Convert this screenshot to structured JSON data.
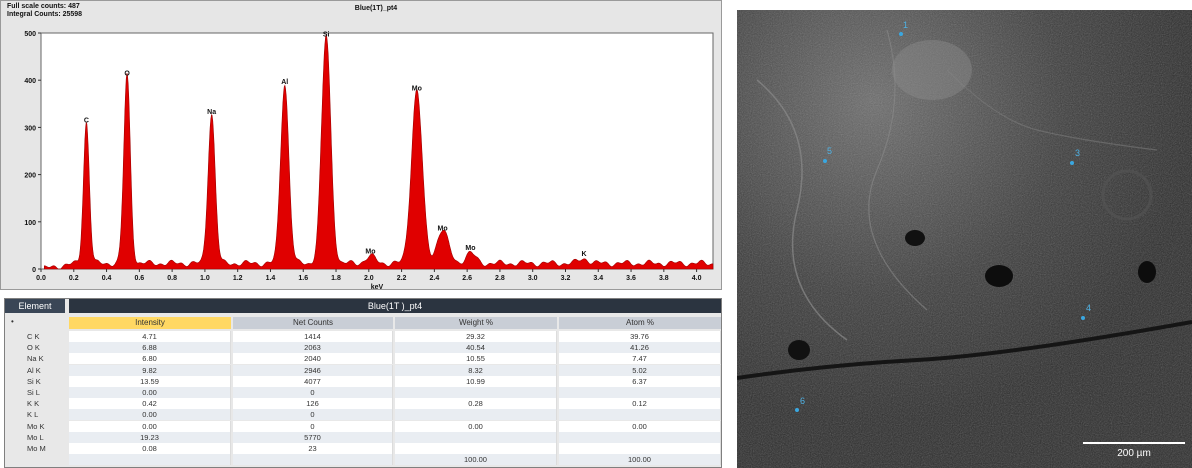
{
  "header": {
    "full_scale": "Full scale counts: 487",
    "integral": "Integral Counts: 25598",
    "title": "Blue(1T)_pt4"
  },
  "chart_data": {
    "type": "area",
    "title": "Blue(1T)_pt4",
    "xlabel": "keV",
    "ylabel": "",
    "xlim": [
      0.0,
      4.1
    ],
    "ylim": [
      0,
      500
    ],
    "xticks": [
      "0.0",
      "0.2",
      "0.4",
      "0.6",
      "0.8",
      "1.0",
      "1.2",
      "1.4",
      "1.6",
      "1.8",
      "2.0",
      "2.2",
      "2.4",
      "2.6",
      "2.8",
      "3.0",
      "3.2",
      "3.4",
      "3.6",
      "3.8",
      "4.0"
    ],
    "yticks": [
      "0",
      "100",
      "200",
      "300",
      "400",
      "500"
    ],
    "color": "#e00000",
    "baseline": 12,
    "peaks": [
      {
        "label": "C",
        "x": 0.277,
        "y": 300,
        "w": 0.018
      },
      {
        "label": "O",
        "x": 0.525,
        "y": 400,
        "w": 0.02
      },
      {
        "label": "Na",
        "x": 1.041,
        "y": 318,
        "w": 0.022
      },
      {
        "label": "Al",
        "x": 1.487,
        "y": 382,
        "w": 0.025
      },
      {
        "label": "Si",
        "x": 1.74,
        "y": 483,
        "w": 0.028
      },
      {
        "label": "Mo",
        "x": 2.01,
        "y": 15,
        "w": 0.03
      },
      {
        "label": "Mo",
        "x": 2.293,
        "y": 368,
        "w": 0.033
      },
      {
        "label": "Mo",
        "x": 2.45,
        "y": 72,
        "w": 0.035
      },
      {
        "label": "Mo",
        "x": 2.62,
        "y": 22,
        "w": 0.03
      },
      {
        "label": "K",
        "x": 3.313,
        "y": 10,
        "w": 0.03
      }
    ]
  },
  "table": {
    "group_title": "Blue(1T )_pt4",
    "element_header": "Element",
    "columns": [
      "Intensity",
      "Net Counts",
      "Weight %",
      "Atom %"
    ],
    "rows": [
      {
        "el": "C K",
        "v": [
          "4.71",
          "1414",
          "29.32",
          "39.76"
        ]
      },
      {
        "el": "O K",
        "v": [
          "6.88",
          "2063",
          "40.54",
          "41.26"
        ]
      },
      {
        "el": "Na K",
        "v": [
          "6.80",
          "2040",
          "10.55",
          "7.47"
        ]
      },
      {
        "el": "Al K",
        "v": [
          "9.82",
          "2946",
          "8.32",
          "5.02"
        ]
      },
      {
        "el": "Si K",
        "v": [
          "13.59",
          "4077",
          "10.99",
          "6.37"
        ]
      },
      {
        "el": "Si L",
        "v": [
          "0.00",
          "0",
          "",
          ""
        ]
      },
      {
        "el": "K K",
        "v": [
          "0.42",
          "126",
          "0.28",
          "0.12"
        ]
      },
      {
        "el": "K L",
        "v": [
          "0.00",
          "0",
          "",
          ""
        ]
      },
      {
        "el": "Mo K",
        "v": [
          "0.00",
          "0",
          "0.00",
          "0.00"
        ]
      },
      {
        "el": "Mo L",
        "v": [
          "19.23",
          "5770",
          "",
          ""
        ]
      },
      {
        "el": "Mo M",
        "v": [
          "0.08",
          "23",
          "",
          ""
        ]
      },
      {
        "el": "",
        "v": [
          "",
          "",
          "100.00",
          "100.00"
        ]
      }
    ]
  },
  "sem": {
    "points": [
      "1",
      "3",
      "5",
      "4",
      "6"
    ],
    "scale_label": "200 µm"
  }
}
